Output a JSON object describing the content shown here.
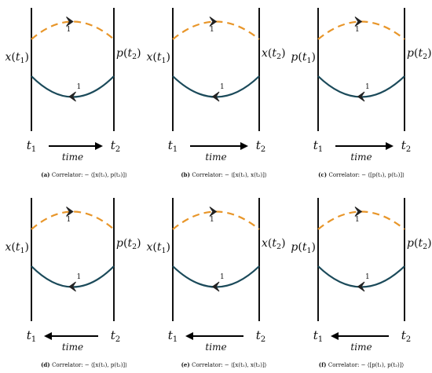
{
  "colors": {
    "line": "#111111",
    "upper_loop": "#e8962a",
    "lower_loop": "#1b4a5a"
  },
  "loop_label": "1",
  "time_label": "time",
  "panels": [
    {
      "id": "a",
      "left_label": [
        "x",
        "(",
        "t",
        "1",
        ")"
      ],
      "right_label": [
        "p",
        "(",
        "t",
        "2",
        ")"
      ],
      "arrow": "right",
      "caption_tag": "(a)",
      "caption_text": "Correlator: − ⟨[x(t₁), p(t₂)]⟩"
    },
    {
      "id": "b",
      "left_label": [
        "x",
        "(",
        "t",
        "1",
        ")"
      ],
      "right_label": [
        "x",
        "(",
        "t",
        "2",
        ")"
      ],
      "arrow": "right",
      "caption_tag": "(b)",
      "caption_text": "Correlator: − ⟨[x(t₁), x(t₂)]⟩"
    },
    {
      "id": "c",
      "left_label": [
        "p",
        "(",
        "t",
        "1",
        ")"
      ],
      "right_label": [
        "p",
        "(",
        "t",
        "2",
        ")"
      ],
      "arrow": "right",
      "caption_tag": "(c)",
      "caption_text": "Correlator: − ⟨[p(t₁), p(t₂)]⟩"
    },
    {
      "id": "d",
      "left_label": [
        "x",
        "(",
        "t",
        "1",
        ")"
      ],
      "right_label": [
        "p",
        "(",
        "t",
        "2",
        ")"
      ],
      "arrow": "left",
      "caption_tag": "(d)",
      "caption_text": "Correlator: − ⟨[x(t₁), p(t₂)]⟩"
    },
    {
      "id": "e",
      "left_label": [
        "x",
        "(",
        "t",
        "1",
        ")"
      ],
      "right_label": [
        "x",
        "(",
        "t",
        "2",
        ")"
      ],
      "arrow": "left",
      "caption_tag": "(e)",
      "caption_text": "Correlator: − ⟨[x(t₁), x(t₂)]⟩"
    },
    {
      "id": "f",
      "left_label": [
        "p",
        "(",
        "t",
        "1",
        ")"
      ],
      "right_label": [
        "p",
        "(",
        "t",
        "2",
        ")"
      ],
      "arrow": "left",
      "caption_tag": "(f)",
      "caption_text": "Correlator: − ⟨[p(t₁), p(t₂)]⟩"
    }
  ],
  "axis_labels": {
    "t1": [
      "t",
      "1"
    ],
    "t2": [
      "t",
      "2"
    ]
  }
}
